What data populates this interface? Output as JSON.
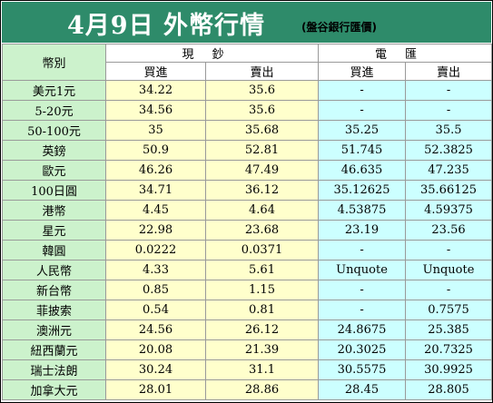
{
  "header": {
    "title": "4月9日 外幣行情",
    "subtitle": "(盤谷銀行匯價)"
  },
  "table": {
    "currency_header": "幣別",
    "cash_header": "現鈔",
    "wire_header": "電匯",
    "buy_label": "買進",
    "sell_label": "賣出",
    "rows": [
      {
        "name": "美元1元",
        "cash_buy": "34.22",
        "cash_sell": "35.6",
        "wire_buy": "-",
        "wire_sell": "-"
      },
      {
        "name": "5-20元",
        "cash_buy": "34.56",
        "cash_sell": "35.6",
        "wire_buy": "-",
        "wire_sell": "-"
      },
      {
        "name": "50-100元",
        "cash_buy": "35",
        "cash_sell": "35.68",
        "wire_buy": "35.25",
        "wire_sell": "35.5"
      },
      {
        "name": "英鎊",
        "cash_buy": "50.9",
        "cash_sell": "52.81",
        "wire_buy": "51.745",
        "wire_sell": "52.3825"
      },
      {
        "name": "歐元",
        "cash_buy": "46.26",
        "cash_sell": "47.49",
        "wire_buy": "46.635",
        "wire_sell": "47.235"
      },
      {
        "name": "100日圓",
        "cash_buy": "34.71",
        "cash_sell": "36.12",
        "wire_buy": "35.12625",
        "wire_sell": "35.66125"
      },
      {
        "name": "港幣",
        "cash_buy": "4.45",
        "cash_sell": "4.64",
        "wire_buy": "4.53875",
        "wire_sell": "4.59375"
      },
      {
        "name": "星元",
        "cash_buy": "22.98",
        "cash_sell": "23.68",
        "wire_buy": "23.19",
        "wire_sell": "23.56"
      },
      {
        "name": "韓圓",
        "cash_buy": "0.0222",
        "cash_sell": "0.0371",
        "wire_buy": "-",
        "wire_sell": "-"
      },
      {
        "name": "人民幣",
        "cash_buy": "4.33",
        "cash_sell": "5.61",
        "wire_buy": "Unquote",
        "wire_sell": "Unquote"
      },
      {
        "name": "新台幣",
        "cash_buy": "0.85",
        "cash_sell": "1.15",
        "wire_buy": "-",
        "wire_sell": "-"
      },
      {
        "name": "菲披索",
        "cash_buy": "0.54",
        "cash_sell": "0.81",
        "wire_buy": "-",
        "wire_sell": "0.7575"
      },
      {
        "name": "澳洲元",
        "cash_buy": "24.56",
        "cash_sell": "26.12",
        "wire_buy": "24.8675",
        "wire_sell": "25.385"
      },
      {
        "name": "紐西蘭元",
        "cash_buy": "20.08",
        "cash_sell": "21.39",
        "wire_buy": "20.3025",
        "wire_sell": "20.7325"
      },
      {
        "name": "瑞士法朗",
        "cash_buy": "30.24",
        "cash_sell": "31.1",
        "wire_buy": "30.5575",
        "wire_sell": "30.9925"
      },
      {
        "name": "加拿大元",
        "cash_buy": "28.01",
        "cash_sell": "28.86",
        "wire_buy": "28.45",
        "wire_sell": "28.805"
      }
    ]
  },
  "colors": {
    "banner": "#2e8b6a",
    "name_column": "#ccf2cc",
    "cash_columns": "#ffffcc",
    "wire_columns": "#ccffff"
  }
}
